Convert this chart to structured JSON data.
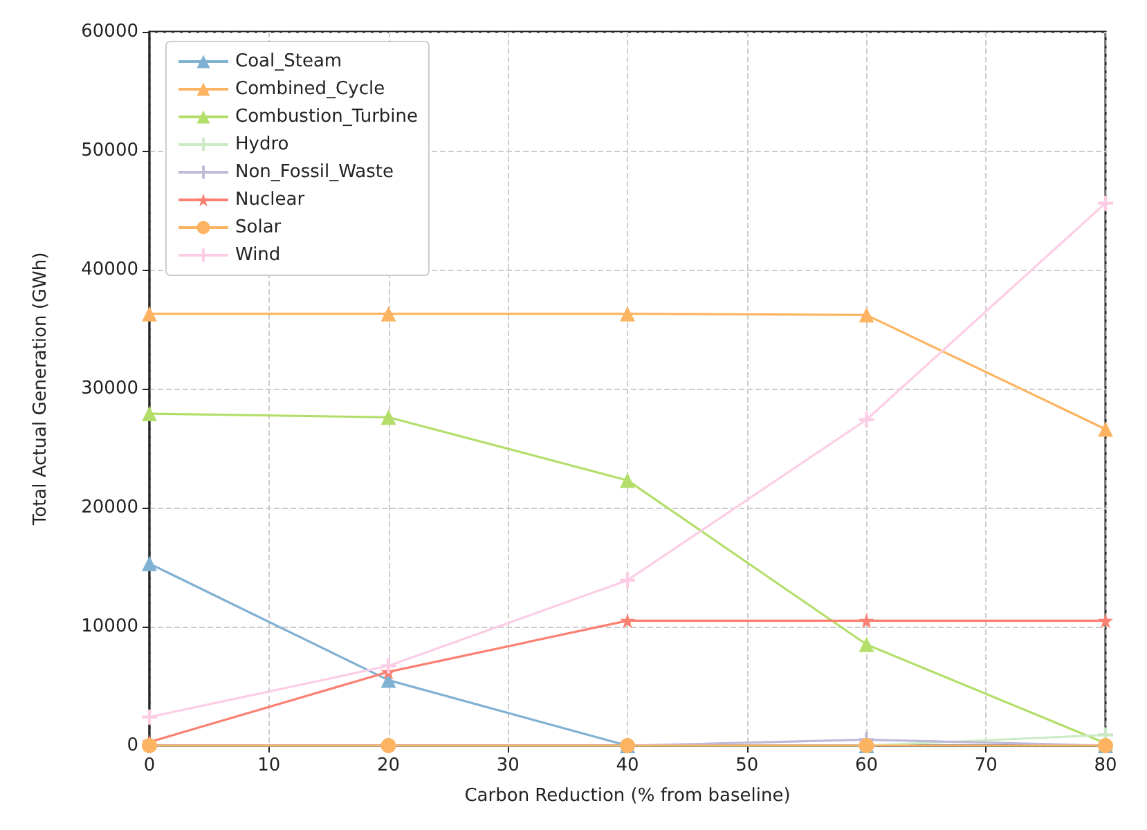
{
  "chart_data": {
    "type": "line",
    "xlabel": "Carbon Reduction (% from baseline)",
    "ylabel": "Total Actual Generation (GWh)",
    "x": [
      0,
      20,
      40,
      60,
      80
    ],
    "xlim": [
      0,
      80
    ],
    "xticks": [
      0,
      10,
      20,
      30,
      40,
      50,
      60,
      70,
      80
    ],
    "ylim": [
      0,
      60000
    ],
    "yticks": [
      0,
      10000,
      20000,
      30000,
      40000,
      50000,
      60000
    ],
    "grid": true,
    "legend": "top left",
    "line_style": "solid",
    "series": [
      {
        "name": "Coal_Steam",
        "color": "#80b1d3",
        "marker": "triangle",
        "values": [
          15300,
          5500,
          0,
          0,
          0
        ]
      },
      {
        "name": "Combined_Cycle",
        "color": "#fdb462",
        "marker": "triangle",
        "values": [
          36300,
          36300,
          36300,
          36200,
          26600
        ]
      },
      {
        "name": "Combustion_Turbine",
        "color": "#b3de69",
        "marker": "triangle",
        "values": [
          27900,
          27600,
          22300,
          8500,
          200
        ]
      },
      {
        "name": "Hydro",
        "color": "#ccebc5",
        "marker": "cross",
        "values": [
          0,
          0,
          0,
          0,
          900
        ]
      },
      {
        "name": "Non_Fossil_Waste",
        "color": "#bebada",
        "marker": "cross",
        "values": [
          0,
          0,
          0,
          500,
          0
        ]
      },
      {
        "name": "Nuclear",
        "color": "#fb8072",
        "marker": "star",
        "values": [
          300,
          6200,
          10500,
          10500,
          10500
        ]
      },
      {
        "name": "Solar",
        "color": "#fdb462",
        "marker": "circle",
        "values": [
          0,
          0,
          0,
          0,
          0
        ]
      },
      {
        "name": "Wind",
        "color": "#fccde5",
        "marker": "cross",
        "values": [
          2400,
          6700,
          13900,
          27400,
          45600
        ]
      }
    ]
  }
}
